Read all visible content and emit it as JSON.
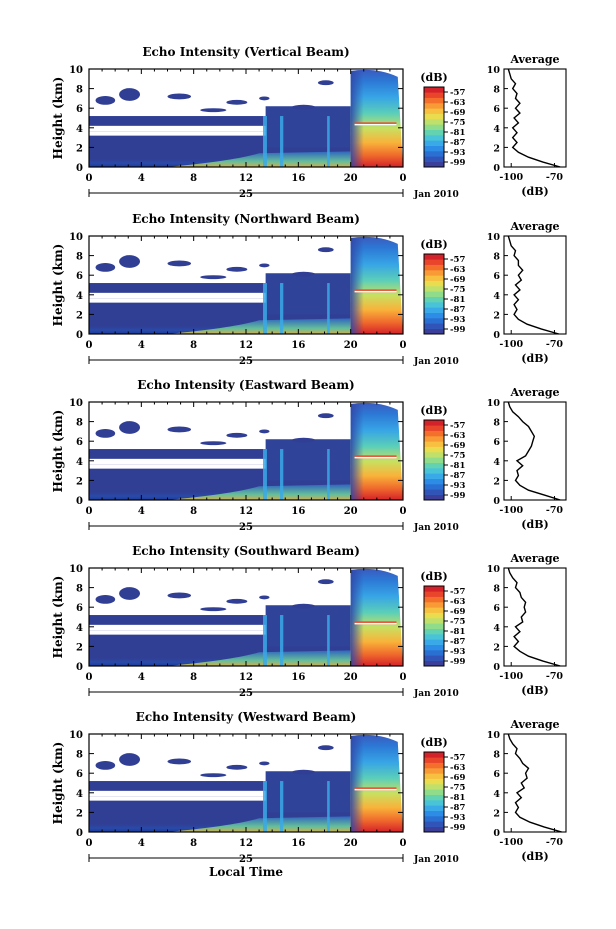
{
  "colors": {
    "colorbar": [
      "#3b3f99",
      "#3054b8",
      "#2a6fd2",
      "#2d8de6",
      "#3aa9e8",
      "#48c3d8",
      "#62d2b0",
      "#8fdc8a",
      "#bfe06a",
      "#e9dc4f",
      "#f7c040",
      "#f89a35",
      "#f46f2c",
      "#e8452a",
      "#d4222a"
    ]
  },
  "figure": {
    "xlabel": "Local Time",
    "profile_xlabel": "(dB)",
    "profile_title": "Average",
    "colorbar_unit": "(dB)",
    "colorbar_ticks": [
      "-57",
      "-63",
      "-69",
      "-75",
      "-81",
      "-87",
      "-93",
      "-99"
    ],
    "ylabel": "Height (km)",
    "date_day": "25",
    "date_month": "Jan 2010"
  },
  "chart_data": [
    {
      "type": "heatmap",
      "title": "Echo Intensity (Vertical Beam)",
      "xlabel": "",
      "ylabel": "Height (km)",
      "x_ticks": [
        "0",
        "4",
        "8",
        "12",
        "16",
        "20",
        "0"
      ],
      "y_ticks": [
        "0",
        "2",
        "4",
        "6",
        "8",
        "10"
      ],
      "xlim": [
        0,
        24
      ],
      "ylim": [
        0,
        10
      ],
      "colorbar": {
        "unit": "(dB)",
        "ticks": [
          -57,
          -63,
          -69,
          -75,
          -81,
          -87,
          -93,
          -99
        ],
        "range": [
          -102,
          -54
        ]
      },
      "profile": {
        "title": "Average",
        "xlabel": "(dB)",
        "x_ticks": [
          "-100",
          "-70"
        ],
        "xlim": [
          -105,
          -62
        ],
        "height": [
          0,
          0.5,
          1,
          1.5,
          2,
          2.5,
          3,
          3.5,
          4,
          4.5,
          5,
          5.5,
          6,
          6.5,
          7,
          7.5,
          8,
          8.5,
          9,
          9.5,
          10
        ],
        "value": [
          -66,
          -78,
          -88,
          -95,
          -99,
          -96,
          -99,
          -96,
          -99,
          -95,
          -98,
          -94,
          -97,
          -94,
          -97,
          -96,
          -99,
          -97,
          -100,
          -101,
          -102
        ]
      }
    },
    {
      "type": "heatmap",
      "title": "Echo Intensity (Northward Beam)",
      "xlabel": "",
      "ylabel": "Height (km)",
      "x_ticks": [
        "0",
        "4",
        "8",
        "12",
        "16",
        "20",
        "0"
      ],
      "y_ticks": [
        "0",
        "2",
        "4",
        "6",
        "8",
        "10"
      ],
      "xlim": [
        0,
        24
      ],
      "ylim": [
        0,
        10
      ],
      "colorbar": {
        "unit": "(dB)",
        "ticks": [
          -57,
          -63,
          -69,
          -75,
          -81,
          -87,
          -93,
          -99
        ],
        "range": [
          -102,
          -54
        ]
      },
      "profile": {
        "title": "Average",
        "xlabel": "(dB)",
        "x_ticks": [
          "-100",
          "-70"
        ],
        "xlim": [
          -105,
          -62
        ],
        "height": [
          0,
          0.5,
          1,
          1.5,
          2,
          2.5,
          3,
          3.5,
          4,
          4.5,
          5,
          5.5,
          6,
          6.5,
          7,
          7.5,
          8,
          8.5,
          9,
          9.5,
          10
        ],
        "value": [
          -67,
          -79,
          -89,
          -95,
          -98,
          -96,
          -98,
          -95,
          -98,
          -94,
          -97,
          -93,
          -95,
          -92,
          -95,
          -95,
          -98,
          -97,
          -100,
          -101,
          -102
        ]
      }
    },
    {
      "type": "heatmap",
      "title": "Echo Intensity (Eastward Beam)",
      "xlabel": "",
      "ylabel": "Height (km)",
      "x_ticks": [
        "0",
        "4",
        "8",
        "12",
        "16",
        "20",
        "0"
      ],
      "y_ticks": [
        "0",
        "2",
        "4",
        "6",
        "8",
        "10"
      ],
      "xlim": [
        0,
        24
      ],
      "ylim": [
        0,
        10
      ],
      "colorbar": {
        "unit": "(dB)",
        "ticks": [
          -57,
          -63,
          -69,
          -75,
          -81,
          -87,
          -93,
          -99
        ],
        "range": [
          -102,
          -54
        ]
      },
      "profile": {
        "title": "Average",
        "xlabel": "(dB)",
        "x_ticks": [
          "-100",
          "-70"
        ],
        "xlim": [
          -105,
          -62
        ],
        "height": [
          0,
          0.5,
          1,
          1.5,
          2,
          2.5,
          3,
          3.5,
          4,
          4.5,
          5,
          5.5,
          6,
          6.5,
          7,
          7.5,
          8,
          8.5,
          9,
          9.5,
          10
        ],
        "value": [
          -66,
          -77,
          -88,
          -94,
          -97,
          -95,
          -96,
          -92,
          -96,
          -90,
          -88,
          -86,
          -85,
          -84,
          -86,
          -88,
          -92,
          -95,
          -99,
          -101,
          -102
        ]
      }
    },
    {
      "type": "heatmap",
      "title": "Echo Intensity (Southward Beam)",
      "xlabel": "",
      "ylabel": "Height (km)",
      "x_ticks": [
        "0",
        "4",
        "8",
        "12",
        "16",
        "20",
        "0"
      ],
      "y_ticks": [
        "0",
        "2",
        "4",
        "6",
        "8",
        "10"
      ],
      "xlim": [
        0,
        24
      ],
      "ylim": [
        0,
        10
      ],
      "colorbar": {
        "unit": "(dB)",
        "ticks": [
          -57,
          -63,
          -69,
          -75,
          -81,
          -87,
          -93,
          -99
        ],
        "range": [
          -102,
          -54
        ]
      },
      "profile": {
        "title": "Average",
        "xlabel": "(dB)",
        "x_ticks": [
          "-100",
          "-70"
        ],
        "xlim": [
          -105,
          -62
        ],
        "height": [
          0,
          0.5,
          1,
          1.5,
          2,
          2.5,
          3,
          3.5,
          4,
          4.5,
          5,
          5.5,
          6,
          6.5,
          7,
          7.5,
          8,
          8.5,
          9,
          9.5,
          10
        ],
        "value": [
          -66,
          -78,
          -88,
          -94,
          -98,
          -95,
          -98,
          -94,
          -97,
          -92,
          -93,
          -90,
          -91,
          -90,
          -93,
          -94,
          -97,
          -96,
          -99,
          -101,
          -102
        ]
      }
    },
    {
      "type": "heatmap",
      "title": "Echo Intensity (Westward Beam)",
      "xlabel": "Local Time",
      "ylabel": "Height (km)",
      "x_ticks": [
        "0",
        "4",
        "8",
        "12",
        "16",
        "20",
        "0"
      ],
      "y_ticks": [
        "0",
        "2",
        "4",
        "6",
        "8",
        "10"
      ],
      "xlim": [
        0,
        24
      ],
      "ylim": [
        0,
        10
      ],
      "colorbar": {
        "unit": "(dB)",
        "ticks": [
          -57,
          -63,
          -69,
          -75,
          -81,
          -87,
          -93,
          -99
        ],
        "range": [
          -102,
          -54
        ]
      },
      "profile": {
        "title": "Average",
        "xlabel": "(dB)",
        "x_ticks": [
          "-100",
          "-70"
        ],
        "xlim": [
          -105,
          -62
        ],
        "height": [
          0,
          0.5,
          1,
          1.5,
          2,
          2.5,
          3,
          3.5,
          4,
          4.5,
          5,
          5.5,
          6,
          6.5,
          7,
          7.5,
          8,
          8.5,
          9,
          9.5,
          10
        ],
        "value": [
          -65,
          -77,
          -87,
          -94,
          -97,
          -95,
          -97,
          -93,
          -96,
          -91,
          -93,
          -89,
          -90,
          -88,
          -92,
          -94,
          -97,
          -96,
          -99,
          -101,
          -102
        ]
      }
    }
  ]
}
